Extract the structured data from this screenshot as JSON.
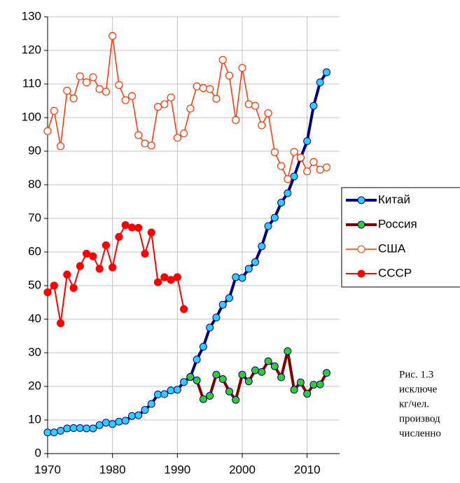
{
  "chart_data": {
    "type": "line",
    "x": [
      1970,
      1971,
      1972,
      1973,
      1974,
      1975,
      1976,
      1977,
      1978,
      1979,
      1980,
      1981,
      1982,
      1983,
      1984,
      1985,
      1986,
      1987,
      1988,
      1989,
      1990,
      1991,
      1992,
      1993,
      1994,
      1995,
      1996,
      1997,
      1998,
      1999,
      2000,
      2001,
      2002,
      2003,
      2004,
      2005,
      2006,
      2007,
      2008,
      2009,
      2010,
      2011,
      2012,
      2013
    ],
    "series": [
      {
        "name": "Китай",
        "color": "#000080",
        "marker_color": "#33ccff",
        "values": [
          6.3,
          6.3,
          6.8,
          7.5,
          7.6,
          7.6,
          7.5,
          7.5,
          8.5,
          9.2,
          8.8,
          9.5,
          9.8,
          11.2,
          11.4,
          13,
          14.8,
          17.6,
          17.7,
          18.8,
          19,
          21.3,
          22.8,
          28,
          31.8,
          37.5,
          40.5,
          44.3,
          46.3,
          52.5,
          52.3,
          55,
          57,
          61.7,
          67.7,
          70.2,
          74.7,
          77.5,
          82.5,
          88,
          93,
          103.5,
          110.5,
          113.5
        ]
      },
      {
        "name": "Россия",
        "color": "#800000",
        "marker_color": "#33cc33",
        "values": [
          null,
          null,
          null,
          null,
          null,
          null,
          null,
          null,
          null,
          null,
          null,
          null,
          null,
          null,
          null,
          null,
          null,
          null,
          null,
          null,
          null,
          null,
          22.8,
          21.8,
          16.2,
          17.2,
          23.5,
          22.2,
          18.5,
          16,
          23.5,
          21.5,
          24.8,
          24.3,
          27.5,
          26,
          22.7,
          30.5,
          19,
          21.2,
          17.8,
          20.5,
          20.6,
          24
        ]
      },
      {
        "name": "США",
        "color": "#ff3300",
        "marker_color": "#ffffff",
        "values": [
          96,
          102,
          91.5,
          108,
          105.7,
          112.3,
          110.5,
          112,
          108.5,
          107.7,
          124.3,
          109.7,
          105.2,
          106.4,
          94.8,
          92.3,
          91.7,
          103.2,
          104,
          106,
          94,
          95.3,
          102.7,
          109.3,
          108.8,
          108.5,
          105.6,
          117.2,
          112.5,
          99.3,
          114.8,
          104,
          103.5,
          97.7,
          101.3,
          89.7,
          85.6,
          81.7,
          89.8,
          88.1,
          84,
          86.8,
          84.5,
          85.2
        ]
      },
      {
        "name": "СССР",
        "color": "#ff0000",
        "marker_color": "#ff0000",
        "values": [
          48,
          50,
          38.8,
          53.3,
          49.3,
          55.8,
          59.5,
          58.7,
          55,
          62,
          55.4,
          64.5,
          68,
          67.3,
          67.2,
          59.5,
          65.8,
          51,
          52.5,
          51.7,
          52.5,
          43,
          null,
          null,
          null,
          null,
          null,
          null,
          null,
          null,
          null,
          null,
          null,
          null,
          null,
          null,
          null,
          null,
          null,
          null,
          null,
          null,
          null,
          null
        ]
      }
    ],
    "xlim": [
      1970,
      2015
    ],
    "xticks": [
      1970,
      1980,
      1990,
      2000,
      2010
    ],
    "ylim": [
      0,
      130
    ],
    "yticks": [
      0,
      10,
      20,
      30,
      40,
      50,
      60,
      70,
      80,
      90,
      100,
      110,
      120,
      130
    ],
    "grid": true,
    "legend": "right",
    "caption": [
      "Рис. 1.3",
      "исключе",
      "кг/чел.",
      "производ",
      "численно"
    ]
  }
}
